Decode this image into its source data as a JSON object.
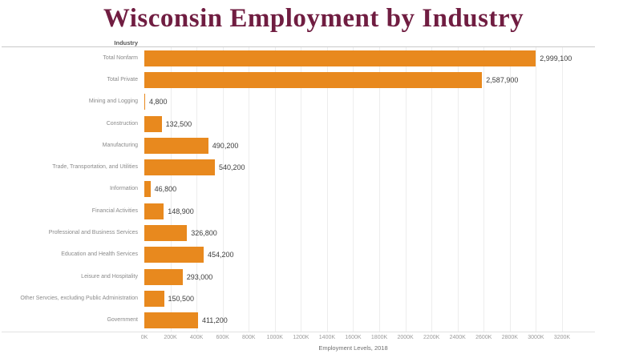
{
  "page": {
    "title": "Wisconsin Employment by Industry"
  },
  "colors": {
    "bar": "#E8891E",
    "title_text": "#701D41",
    "grid": "#EDEDED",
    "category_label": "#8A8A8A",
    "value_label": "#3C3C3C"
  },
  "chart_data": {
    "type": "bar",
    "orientation": "horizontal",
    "title": "Wisconsin Employment by Industry",
    "column_header": "Industry",
    "categories": [
      "Total Nonfarm",
      "Total Private",
      "Mining and Logging",
      "Construction",
      "Manufacturing",
      "Trade, Transportation, and Utilities",
      "Information",
      "Financial Activities",
      "Professional and Business Services",
      "Education and Health Services",
      "Leisure and Hospitality",
      "Other Servcies, excluding Public Administration",
      "Government"
    ],
    "values": [
      2999100,
      2587900,
      4800,
      132500,
      490200,
      540200,
      46800,
      148900,
      326800,
      454200,
      293000,
      150500,
      411200
    ],
    "value_labels": [
      "2,999,100",
      "2,587,900",
      "4,800",
      "132,500",
      "490,200",
      "540,200",
      "46,800",
      "148,900",
      "326,800",
      "454,200",
      "293,000",
      "150,500",
      "411,200"
    ],
    "xlabel": "Employment Levels, 2018",
    "xlim": [
      0,
      3200000
    ],
    "xtick_step": 200000,
    "xtick_labels": [
      "0K",
      "200K",
      "400K",
      "600K",
      "800K",
      "1000K",
      "1200K",
      "1400K",
      "1600K",
      "1800K",
      "2000K",
      "2200K",
      "2400K",
      "2600K",
      "2800K",
      "3000K",
      "3200K"
    ],
    "grid": true,
    "legend": false,
    "bar_color": "#E8891E"
  }
}
